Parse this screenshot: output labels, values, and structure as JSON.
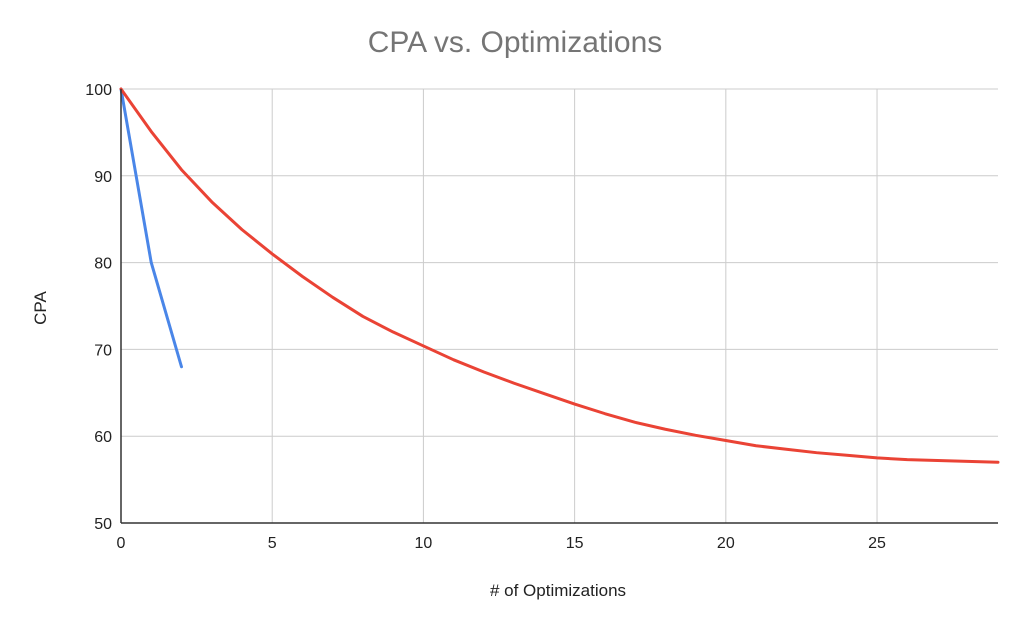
{
  "chart_data": {
    "type": "line",
    "title": "CPA vs. Optimizations",
    "xlabel": "# of Optimizations",
    "ylabel": "CPA",
    "xlim": [
      0,
      29
    ],
    "ylim": [
      50,
      100
    ],
    "x_ticks": [
      0,
      5,
      10,
      15,
      20,
      25
    ],
    "y_ticks": [
      50,
      60,
      70,
      80,
      90,
      100
    ],
    "grid": true,
    "series": [
      {
        "color": "#4a86e8",
        "x": [
          0,
          1,
          2
        ],
        "values": [
          100,
          80,
          68
        ]
      },
      {
        "color": "#ea4335",
        "x": [
          0,
          1,
          2,
          3,
          4,
          5,
          6,
          7,
          8,
          9,
          10,
          11,
          12,
          13,
          14,
          15,
          16,
          17,
          18,
          19,
          20,
          21,
          22,
          23,
          24,
          25,
          26,
          27,
          28,
          29
        ],
        "values": [
          100,
          95.1,
          90.7,
          87.0,
          83.8,
          81.0,
          78.4,
          76.0,
          73.8,
          72.0,
          70.4,
          68.8,
          67.4,
          66.1,
          64.9,
          63.7,
          62.6,
          61.6,
          60.8,
          60.1,
          59.5,
          58.9,
          58.5,
          58.1,
          57.8,
          57.5,
          57.3,
          57.2,
          57.1,
          57.0
        ]
      }
    ]
  }
}
